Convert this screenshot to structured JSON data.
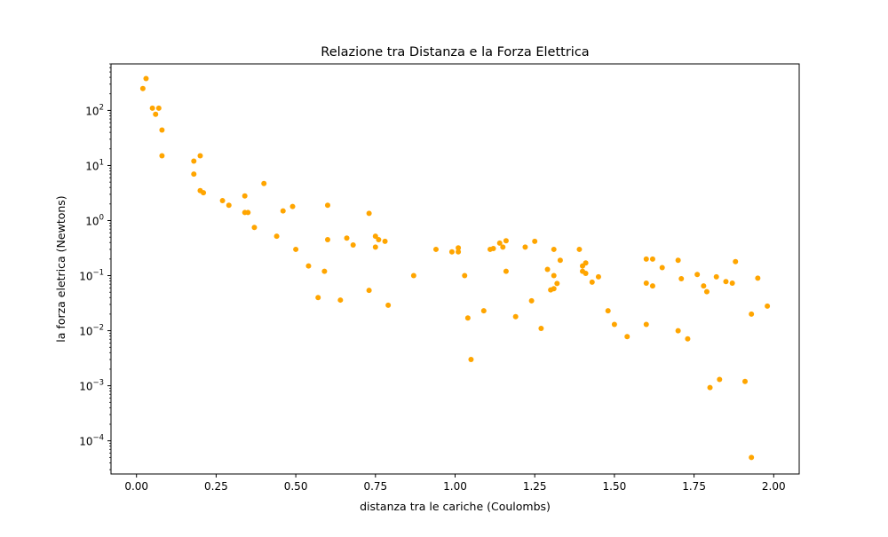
{
  "chart_data": {
    "type": "scatter",
    "title": "Relazione tra Distanza e la Forza Elettrica",
    "xlabel": "distanza tra le cariche (Coulombs)",
    "ylabel": "la forza eletrica (Newtons)",
    "xlim": [
      -0.08,
      2.08
    ],
    "ylim": [
      2.5e-05,
      700
    ],
    "yscale": "log",
    "grid": false,
    "x_ticks": [
      0.0,
      0.25,
      0.5,
      0.75,
      1.0,
      1.25,
      1.5,
      1.75,
      2.0
    ],
    "x_tick_labels": [
      "0.00",
      "0.25",
      "0.50",
      "0.75",
      "1.00",
      "1.25",
      "1.50",
      "1.75",
      "2.00"
    ],
    "y_ticks": [
      0.0001,
      0.001,
      0.01,
      0.1,
      1,
      10,
      100
    ],
    "y_tick_labels": [
      {
        "base": "10",
        "exp": "−4"
      },
      {
        "base": "10",
        "exp": "−3"
      },
      {
        "base": "10",
        "exp": "−2"
      },
      {
        "base": "10",
        "exp": "−1"
      },
      {
        "base": "10",
        "exp": "0"
      },
      {
        "base": "10",
        "exp": "1"
      },
      {
        "base": "10",
        "exp": "2"
      }
    ],
    "marker_color": "#ffa500",
    "series": [
      {
        "points": [
          [
            0.02,
            250
          ],
          [
            0.03,
            380
          ],
          [
            0.05,
            110
          ],
          [
            0.06,
            85
          ],
          [
            0.07,
            110
          ],
          [
            0.08,
            44
          ],
          [
            0.08,
            15
          ],
          [
            0.18,
            12
          ],
          [
            0.18,
            7
          ],
          [
            0.2,
            15
          ],
          [
            0.2,
            3.5
          ],
          [
            0.21,
            3.2
          ],
          [
            0.27,
            2.3
          ],
          [
            0.29,
            1.9
          ],
          [
            0.34,
            2.8
          ],
          [
            0.34,
            1.4
          ],
          [
            0.35,
            1.4
          ],
          [
            0.37,
            0.75
          ],
          [
            0.4,
            4.7
          ],
          [
            0.44,
            0.52
          ],
          [
            0.46,
            1.5
          ],
          [
            0.49,
            1.8
          ],
          [
            0.5,
            0.3
          ],
          [
            0.54,
            0.15
          ],
          [
            0.57,
            0.04
          ],
          [
            0.59,
            0.12
          ],
          [
            0.6,
            1.9
          ],
          [
            0.6,
            0.45
          ],
          [
            0.64,
            0.036
          ],
          [
            0.66,
            0.48
          ],
          [
            0.68,
            0.36
          ],
          [
            0.73,
            1.35
          ],
          [
            0.73,
            0.054
          ],
          [
            0.75,
            0.52
          ],
          [
            0.75,
            0.33
          ],
          [
            0.76,
            0.45
          ],
          [
            0.78,
            0.42
          ],
          [
            0.79,
            0.029
          ],
          [
            0.87,
            0.1
          ],
          [
            0.94,
            0.3
          ],
          [
            0.99,
            0.27
          ],
          [
            1.01,
            0.27
          ],
          [
            1.01,
            0.32
          ],
          [
            1.03,
            0.1
          ],
          [
            1.04,
            0.017
          ],
          [
            1.05,
            0.003
          ],
          [
            1.09,
            0.023
          ],
          [
            1.11,
            0.3
          ],
          [
            1.12,
            0.31
          ],
          [
            1.14,
            0.39
          ],
          [
            1.15,
            0.33
          ],
          [
            1.16,
            0.43
          ],
          [
            1.16,
            0.12
          ],
          [
            1.19,
            0.018
          ],
          [
            1.22,
            0.33
          ],
          [
            1.24,
            0.035
          ],
          [
            1.25,
            0.42
          ],
          [
            1.27,
            0.011
          ],
          [
            1.29,
            0.13
          ],
          [
            1.3,
            0.055
          ],
          [
            1.31,
            0.3
          ],
          [
            1.31,
            0.1
          ],
          [
            1.31,
            0.058
          ],
          [
            1.32,
            0.072
          ],
          [
            1.33,
            0.19
          ],
          [
            1.39,
            0.3
          ],
          [
            1.4,
            0.15
          ],
          [
            1.4,
            0.12
          ],
          [
            1.41,
            0.17
          ],
          [
            1.41,
            0.11
          ],
          [
            1.43,
            0.076
          ],
          [
            1.45,
            0.095
          ],
          [
            1.48,
            0.023
          ],
          [
            1.5,
            0.013
          ],
          [
            1.54,
            0.0078
          ],
          [
            1.6,
            0.2
          ],
          [
            1.6,
            0.013
          ],
          [
            1.6,
            0.073
          ],
          [
            1.62,
            0.2
          ],
          [
            1.62,
            0.065
          ],
          [
            1.65,
            0.14
          ],
          [
            1.7,
            0.19
          ],
          [
            1.7,
            0.01
          ],
          [
            1.71,
            0.088
          ],
          [
            1.73,
            0.0071
          ],
          [
            1.76,
            0.105
          ],
          [
            1.78,
            0.065
          ],
          [
            1.79,
            0.051
          ],
          [
            1.8,
            0.00093
          ],
          [
            1.82,
            0.095
          ],
          [
            1.83,
            0.0013
          ],
          [
            1.85,
            0.078
          ],
          [
            1.87,
            0.073
          ],
          [
            1.88,
            0.18
          ],
          [
            1.91,
            0.0012
          ],
          [
            1.93,
            0.02
          ],
          [
            1.93,
            5e-05
          ],
          [
            1.95,
            0.09
          ],
          [
            1.98,
            0.028
          ]
        ]
      }
    ]
  }
}
